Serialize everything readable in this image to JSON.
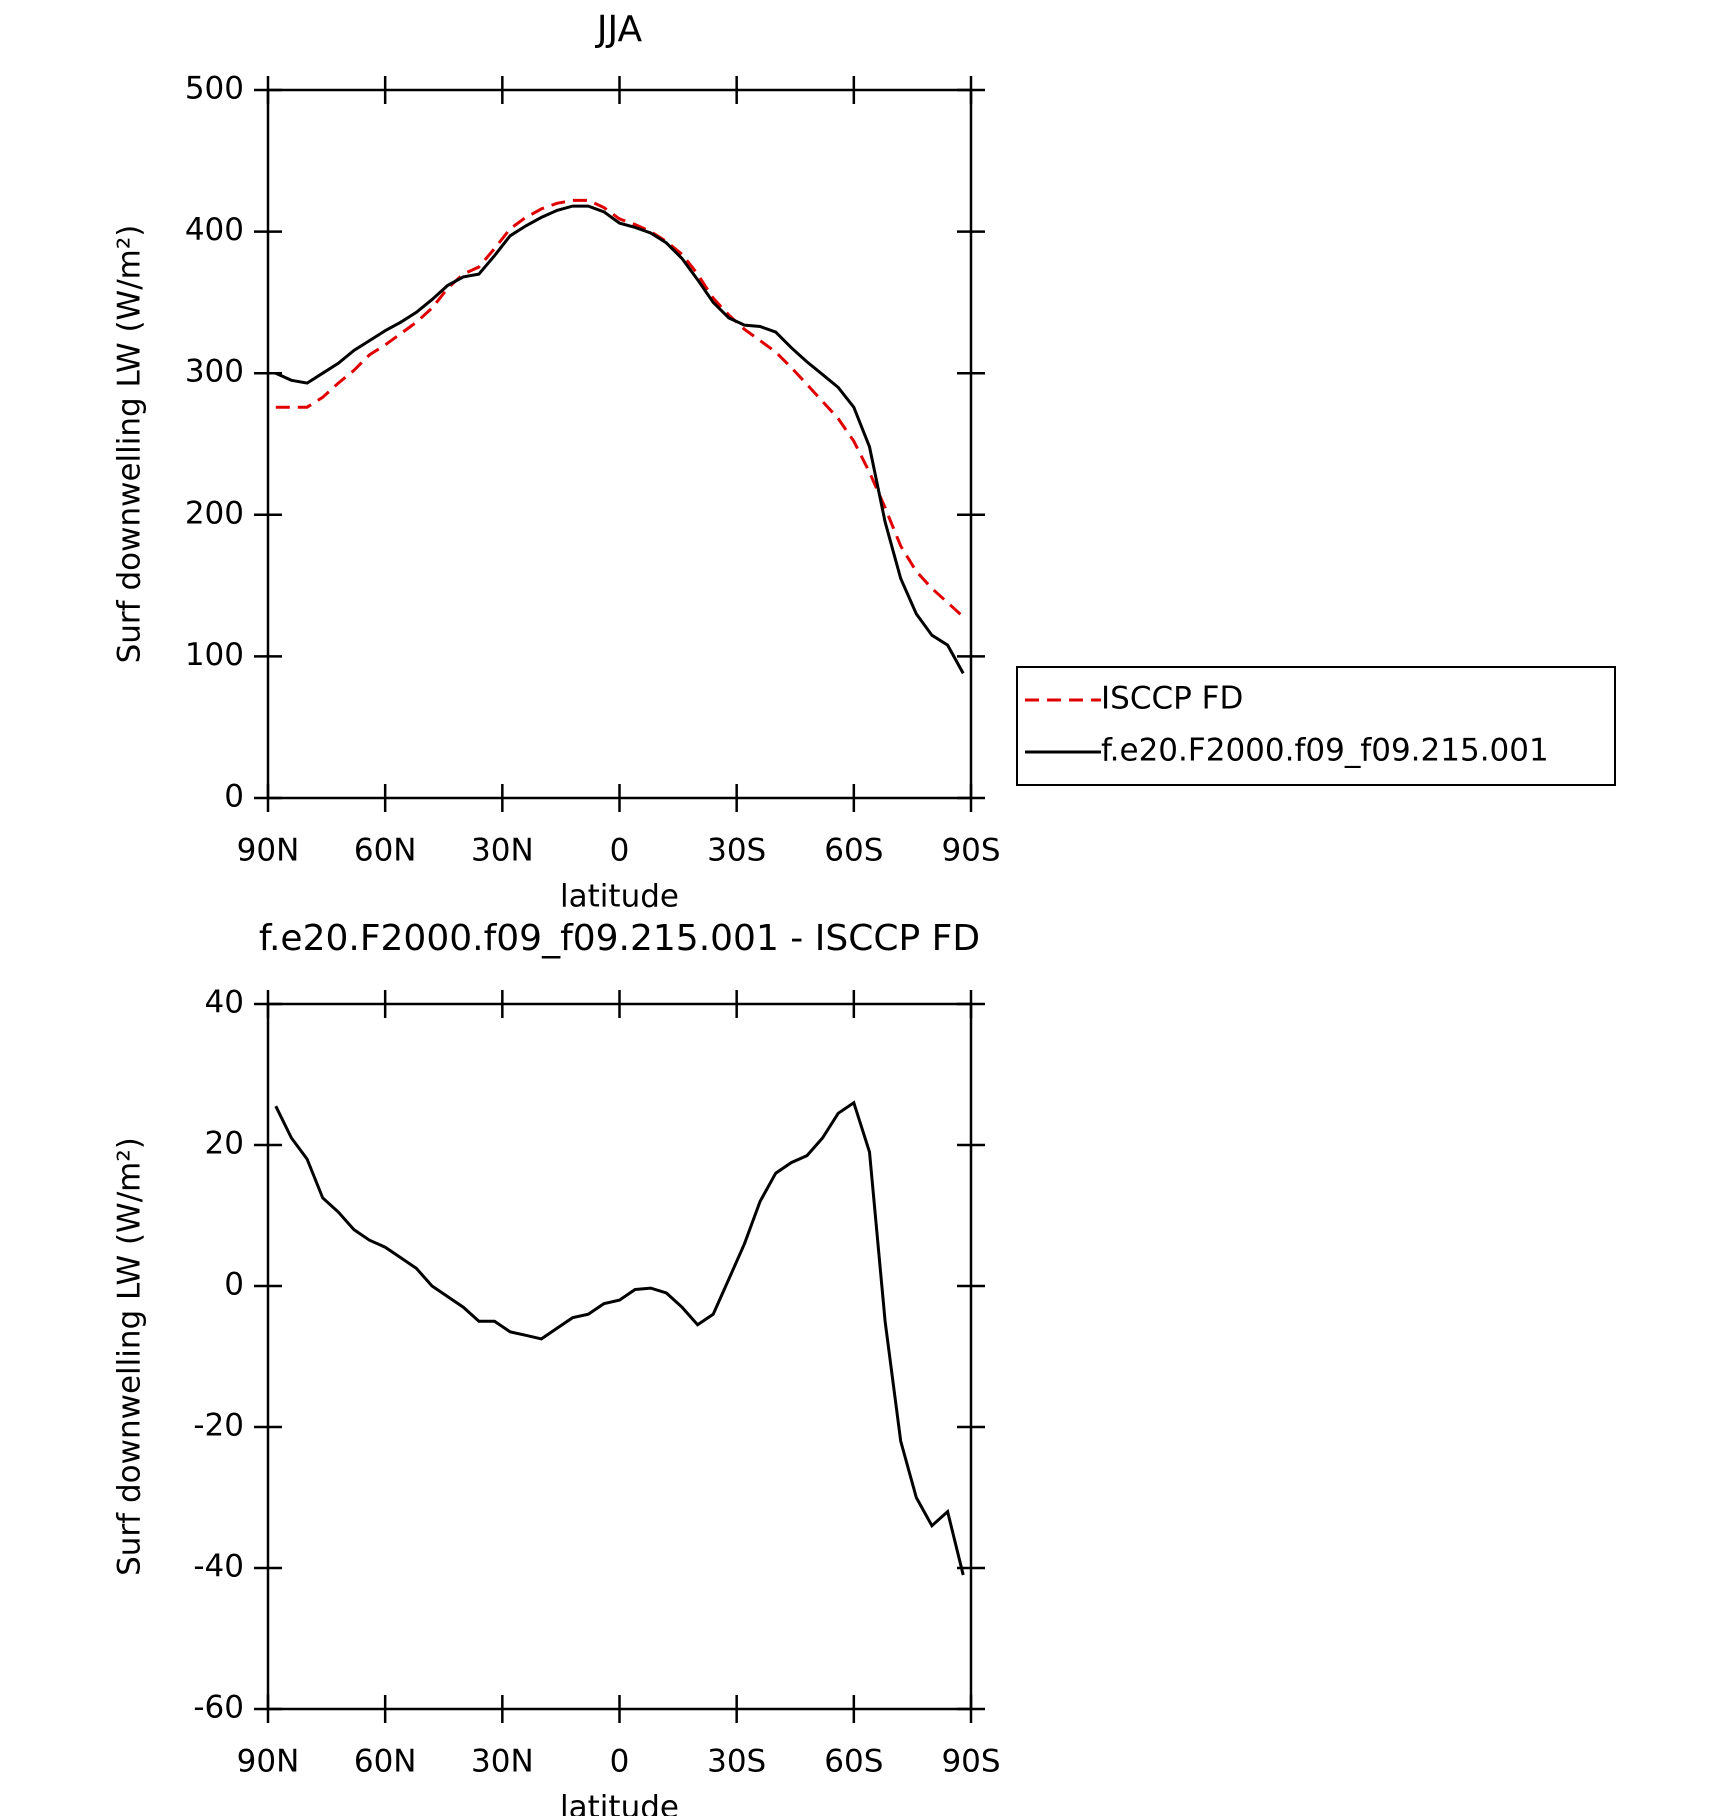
{
  "chart_data": [
    {
      "type": "line",
      "title": "JJA",
      "xlabel": "latitude",
      "ylabel": "Surf downwelling LW (W/m²)",
      "x": [
        88,
        84,
        80,
        76,
        72,
        68,
        64,
        60,
        56,
        52,
        48,
        44,
        40,
        36,
        32,
        28,
        24,
        20,
        16,
        12,
        8,
        4,
        0,
        -4,
        -8,
        -12,
        -16,
        -20,
        -24,
        -28,
        -32,
        -36,
        -40,
        -44,
        -48,
        -52,
        -56,
        -60,
        -64,
        -68,
        -72,
        -76,
        -80,
        -84,
        -88
      ],
      "xlim": [
        90,
        -90
      ],
      "xticks": [
        {
          "value": 90,
          "label": "90N"
        },
        {
          "value": 60,
          "label": "60N"
        },
        {
          "value": 30,
          "label": "30N"
        },
        0,
        {
          "value": -30,
          "label": "30S"
        },
        {
          "value": -60,
          "label": "60S"
        },
        {
          "value": -90,
          "label": "90S"
        }
      ],
      "ylim": [
        0,
        500
      ],
      "yticks": [
        0,
        100,
        200,
        300,
        400,
        500
      ],
      "legend": "right",
      "series": [
        {
          "name": "ISCCP FD",
          "color": "#e00000",
          "dashed": true,
          "values": [
            276,
            276,
            276,
            283,
            293,
            302,
            313,
            320,
            328,
            336,
            346,
            360,
            370,
            375,
            388,
            402,
            410,
            416,
            420,
            422,
            422,
            417,
            409,
            405,
            400,
            393,
            384,
            370,
            353,
            341,
            331,
            323,
            315,
            304,
            292,
            280,
            268,
            252,
            230,
            205,
            178,
            160,
            148,
            138,
            128
          ]
        },
        {
          "name": "f.e20.F2000.f09_f09.215.001",
          "color": "#000000",
          "dashed": false,
          "values": [
            300,
            295,
            293,
            300,
            307,
            316,
            323,
            330,
            336,
            343,
            352,
            362,
            368,
            370,
            383,
            397,
            404,
            410,
            415,
            418,
            418,
            414,
            406,
            403,
            399,
            392,
            381,
            366,
            350,
            339,
            334,
            333,
            329,
            318,
            308,
            299,
            290,
            276,
            248,
            195,
            155,
            130,
            115,
            108,
            88
          ]
        }
      ]
    },
    {
      "type": "line",
      "title": "f.e20.F2000.f09_f09.215.001 - ISCCP FD",
      "xlabel": "latitude",
      "ylabel": "Surf downwelling LW (W/m²)",
      "x": [
        88,
        84,
        80,
        76,
        72,
        68,
        64,
        60,
        56,
        52,
        48,
        44,
        40,
        36,
        32,
        28,
        24,
        20,
        16,
        12,
        8,
        4,
        0,
        -4,
        -8,
        -12,
        -16,
        -20,
        -24,
        -28,
        -32,
        -36,
        -40,
        -44,
        -48,
        -52,
        -56,
        -60,
        -64,
        -68,
        -72,
        -76,
        -80,
        -84,
        -88
      ],
      "xlim": [
        90,
        -90
      ],
      "xticks": [
        {
          "value": 90,
          "label": "90N"
        },
        {
          "value": 60,
          "label": "60N"
        },
        {
          "value": 30,
          "label": "30N"
        },
        0,
        {
          "value": -30,
          "label": "30S"
        },
        {
          "value": -60,
          "label": "60S"
        },
        {
          "value": -90,
          "label": "90S"
        }
      ],
      "ylim": [
        -60,
        40
      ],
      "yticks": [
        -60,
        -40,
        -20,
        0,
        20,
        40
      ],
      "series": [
        {
          "color": "#000000",
          "dashed": false,
          "values": [
            25.5,
            21,
            18,
            12.5,
            10.5,
            8,
            6.5,
            5.5,
            4,
            2.5,
            0,
            -1.5,
            -3,
            -5,
            -5,
            -6.5,
            -7,
            -7.5,
            -6,
            -4.5,
            -4,
            -2.5,
            -2,
            -0.5,
            -0.3,
            -1,
            -3,
            -5.5,
            -4,
            1,
            6,
            12,
            16,
            17.5,
            18.5,
            21,
            24.5,
            26,
            19,
            -5,
            -22,
            -30,
            -34,
            -32,
            -41
          ]
        }
      ]
    }
  ]
}
